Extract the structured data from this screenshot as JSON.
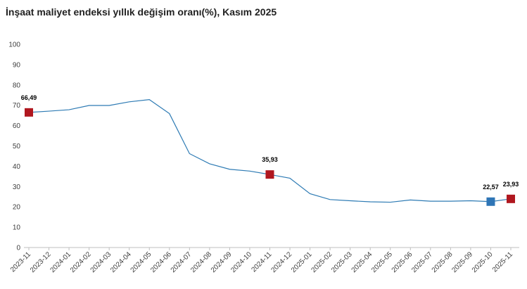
{
  "chart_data": {
    "type": "line",
    "title": "İnşaat maliyet endeksi yıllık değişim oranı(%), Kasım 2025",
    "categories": [
      "2023-11",
      "2023-12",
      "2024-01",
      "2024-02",
      "2024-03",
      "2024-04",
      "2024-05",
      "2024-06",
      "2024-07",
      "2024-08",
      "2024-09",
      "2024-10",
      "2024-11",
      "2024-12",
      "2025-01",
      "2025-02",
      "2025-03",
      "2025-04",
      "2025-05",
      "2025-06",
      "2025-07",
      "2025-08",
      "2025-09",
      "2025-10",
      "2025-11"
    ],
    "values": [
      66.49,
      67.1,
      67.8,
      69.9,
      69.9,
      71.7,
      72.8,
      65.9,
      46.2,
      41.2,
      38.5,
      37.6,
      35.93,
      34.1,
      26.5,
      23.6,
      23.0,
      22.5,
      22.3,
      23.4,
      22.8,
      22.8,
      23.0,
      22.57,
      23.93
    ],
    "value_labels": [
      "66,49",
      null,
      null,
      null,
      null,
      null,
      null,
      null,
      null,
      null,
      null,
      null,
      "35,93",
      null,
      null,
      null,
      null,
      null,
      null,
      null,
      null,
      null,
      null,
      "22,57",
      "23,93"
    ],
    "marker_colors": [
      "#b0171f",
      null,
      null,
      null,
      null,
      null,
      null,
      null,
      null,
      null,
      null,
      null,
      "#b0171f",
      null,
      null,
      null,
      null,
      null,
      null,
      null,
      null,
      null,
      null,
      "#2e75b6",
      "#b0171f"
    ],
    "color": "#2e7bb4",
    "ylim": [
      0,
      100
    ],
    "yticks": [
      0,
      10,
      20,
      30,
      40,
      50,
      60,
      70,
      80,
      90,
      100
    ],
    "grid": false
  }
}
